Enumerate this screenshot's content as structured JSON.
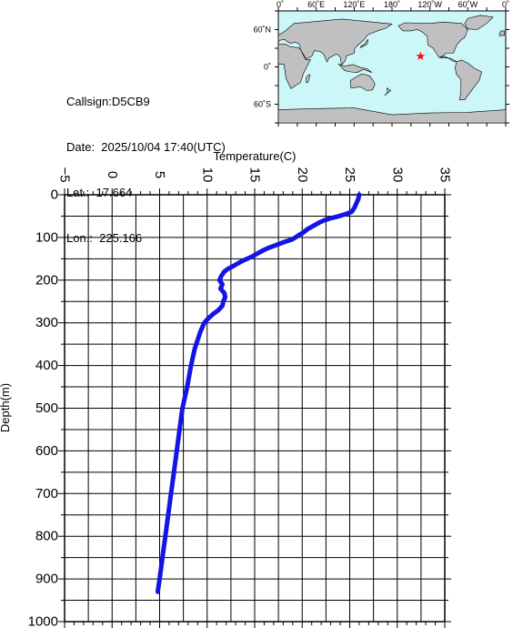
{
  "station": {
    "callsign": "Callsign:D5CB9",
    "date": "Date:  2025/10/04 17:40(UTC)",
    "lat": "Lat.:  17.664",
    "lon": "Lon.:  225.166"
  },
  "map": {
    "lon_labels": [
      "0˚",
      "60˚E",
      "120˚E",
      "180˚",
      "120˚W",
      "60˚W",
      "0˚"
    ],
    "lat_labels": [
      "60˚N",
      "0˚",
      "60˚S"
    ],
    "ocean_color": "#ccf7f9",
    "land_color": "#c0c0c0",
    "marker": {
      "lat": 17.664,
      "lon": 225.166,
      "symbol": "star",
      "color": "#ff0000"
    }
  },
  "chart_data": {
    "type": "line",
    "xlabel": "Temperature(C)",
    "ylabel": "Depth(m)",
    "xlim": [
      -5,
      35
    ],
    "ylim": [
      1000,
      0
    ],
    "x_ticks": [
      "-5",
      "0",
      "5",
      "10",
      "15",
      "20",
      "25",
      "30",
      "35"
    ],
    "y_ticks": [
      "0",
      "100",
      "200",
      "300",
      "400",
      "500",
      "600",
      "700",
      "800",
      "900",
      "1000"
    ],
    "grid": true,
    "line_color": "#1414e6",
    "series": [
      {
        "depth": [
          0,
          10,
          20,
          30,
          40,
          45,
          50,
          55,
          60,
          65,
          70,
          75,
          80,
          85,
          90,
          95,
          100,
          105,
          110,
          115,
          120,
          125,
          130,
          135,
          140,
          145,
          150,
          155,
          160,
          165,
          170,
          175,
          180,
          190,
          200,
          210,
          220,
          230,
          240,
          250,
          260,
          270,
          280,
          290,
          300,
          320,
          340,
          360,
          380,
          400,
          450,
          500,
          550,
          600,
          650,
          700,
          750,
          800,
          850,
          900,
          930
        ],
        "temperature": [
          26.0,
          25.9,
          25.7,
          25.5,
          25.2,
          24.6,
          23.9,
          23.0,
          22.3,
          21.8,
          21.4,
          21.0,
          20.6,
          20.3,
          20.0,
          19.6,
          19.3,
          18.9,
          18.2,
          17.6,
          17.0,
          16.4,
          15.9,
          15.5,
          15.1,
          14.7,
          14.2,
          13.7,
          13.3,
          12.9,
          12.5,
          12.1,
          11.8,
          11.5,
          11.3,
          11.6,
          11.4,
          11.8,
          11.9,
          11.7,
          11.6,
          11.2,
          10.6,
          10.1,
          9.7,
          9.3,
          9.0,
          8.7,
          8.5,
          8.3,
          7.9,
          7.4,
          7.1,
          6.8,
          6.5,
          6.2,
          5.9,
          5.6,
          5.3,
          5.0,
          4.8
        ]
      }
    ]
  }
}
